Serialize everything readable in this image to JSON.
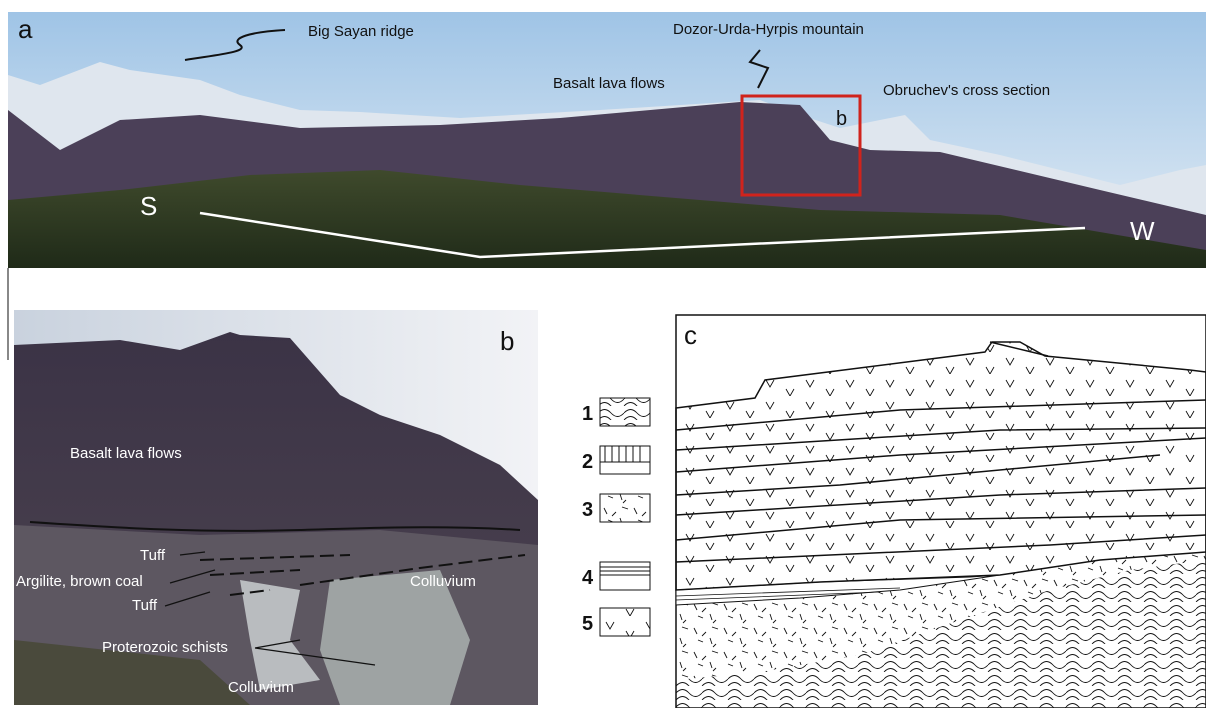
{
  "panel_a": {
    "letter": "a",
    "big_sayan": "Big Sayan ridge",
    "mountain": "Dozor-Urda-Hyrpis mountain",
    "basalt": "Basalt lava flows",
    "obruchev": "Obruchev's cross section",
    "box": "b",
    "south": "S",
    "west": "W"
  },
  "panel_b": {
    "letter": "b",
    "basalt": "Basalt lava flows",
    "tuff_upper": "Tuff",
    "argilite": "Argilite, brown coal",
    "tuff_lower": "Tuff",
    "colluvium_right": "Colluvium",
    "schists": "Proterozoic schists",
    "colluvium_bottom": "Colluvium"
  },
  "legend": {
    "items": [
      "1",
      "2",
      "3",
      "4",
      "5"
    ]
  },
  "panel_c": {
    "letter": "c"
  }
}
